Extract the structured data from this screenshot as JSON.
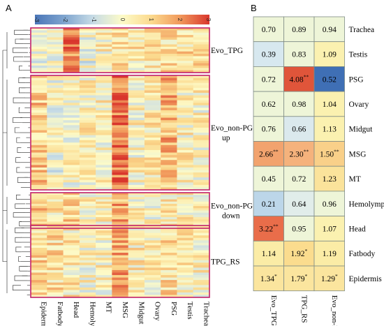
{
  "panel_a": {
    "letter": "A",
    "colorbar_ticks": [
      "-3",
      "-2",
      "-1",
      "0",
      "1",
      "2",
      "3"
    ],
    "colors": {
      "low": "#4a76b8",
      "mid": "#fdfbc8",
      "high": "#d9362d",
      "box": "#c1206a"
    }
  },
  "panel_b": {
    "letter": "B"
  },
  "chart_data": [
    {
      "type": "heatmap",
      "title": "",
      "color_scale": {
        "min": -3,
        "max": 3,
        "ticks": [
          -3,
          -2,
          -1,
          0,
          1,
          2,
          3
        ],
        "palette": "blue-white-yellow-red"
      },
      "columns": [
        "Epidermis",
        "Fatbody",
        "Head",
        "Hemolymph",
        "MT",
        "MSG",
        "Midgut",
        "Ovary",
        "PSG",
        "Testis",
        "Trachea"
      ],
      "dendrogram": true,
      "groups": [
        {
          "name": "Evo_TPG",
          "lines": [
            "Evo_TPG"
          ],
          "rows": 19
        },
        {
          "name": "Evo_non-PG up",
          "lines": [
            "Evo_non-PG",
            "up"
          ],
          "rows": 46
        },
        {
          "name": "Evo_non-PG down",
          "lines": [
            "Evo_non-PG",
            "down"
          ],
          "rows": 16
        },
        {
          "name": "TPG_RS",
          "lines": [
            "TPG_RS"
          ],
          "rows": 29
        }
      ],
      "group_profiles": [
        [
          -0.3,
          -0.1,
          2.3,
          -0.2,
          0.3,
          0.7,
          0.4,
          0.6,
          0.8,
          0.7,
          0.6
        ],
        [
          1.1,
          -0.2,
          0.1,
          0.3,
          0.2,
          2.4,
          0.2,
          0.4,
          1.4,
          0.3,
          0.2
        ],
        [
          1.5,
          0.6,
          0.9,
          0.3,
          0.2,
          1.5,
          0.2,
          0.1,
          0.5,
          0.4,
          0.2
        ],
        [
          0.9,
          0.8,
          0.5,
          0.1,
          0.2,
          1.6,
          0.4,
          0.3,
          0.8,
          0.4,
          0.3
        ]
      ]
    },
    {
      "type": "table",
      "title": "",
      "columns": [
        "Evo_TPG",
        "TPG_RS",
        "Evo_non-PG"
      ],
      "rows": [
        {
          "tissue": "Trachea",
          "values": [
            0.7,
            0.89,
            0.94
          ],
          "labels": [
            "0.70",
            "0.89",
            "0.94"
          ],
          "sig": [
            "",
            "",
            ""
          ]
        },
        {
          "tissue": "Testis",
          "values": [
            0.39,
            0.83,
            1.09
          ],
          "labels": [
            "0.39",
            "0.83",
            "1.09"
          ],
          "sig": [
            "",
            "",
            ""
          ]
        },
        {
          "tissue": "PSG",
          "values": [
            0.72,
            4.08,
            0.52
          ],
          "labels": [
            "0.72",
            "4.08",
            "0.52"
          ],
          "sig": [
            "",
            "**",
            ""
          ]
        },
        {
          "tissue": "Ovary",
          "values": [
            0.62,
            0.98,
            1.04
          ],
          "labels": [
            "0.62",
            "0.98",
            "1.04"
          ],
          "sig": [
            "",
            "",
            ""
          ]
        },
        {
          "tissue": "Midgut",
          "values": [
            0.76,
            0.66,
            1.13
          ],
          "labels": [
            "0.76",
            "0.66",
            "1.13"
          ],
          "sig": [
            "",
            "",
            ""
          ]
        },
        {
          "tissue": "MSG",
          "values": [
            2.66,
            2.3,
            1.5
          ],
          "labels": [
            "2.66",
            "2.30",
            "1.50"
          ],
          "sig": [
            "**",
            "**",
            "**"
          ]
        },
        {
          "tissue": "MT",
          "values": [
            0.45,
            0.72,
            1.23
          ],
          "labels": [
            "0.45",
            "0.72",
            "1.23"
          ],
          "sig": [
            "",
            "",
            ""
          ]
        },
        {
          "tissue": "Hemolymph",
          "values": [
            0.21,
            0.64,
            0.96
          ],
          "labels": [
            "0.21",
            "0.64",
            "0.96"
          ],
          "sig": [
            "",
            "",
            ""
          ]
        },
        {
          "tissue": "Head",
          "values": [
            3.22,
            0.95,
            1.07
          ],
          "labels": [
            "3.22",
            "0.95",
            "1.07"
          ],
          "sig": [
            "**",
            "",
            ""
          ]
        },
        {
          "tissue": "Fatbody",
          "values": [
            1.14,
            1.92,
            1.19
          ],
          "labels": [
            "1.14",
            "1.92",
            "1.19"
          ],
          "sig": [
            "",
            "*",
            ""
          ]
        },
        {
          "tissue": "Epidermis",
          "values": [
            1.34,
            1.79,
            1.29
          ],
          "labels": [
            "1.34",
            "1.79",
            "1.29"
          ],
          "sig": [
            "*",
            "*",
            "*"
          ]
        }
      ],
      "cell_colors": [
        [
          "#eef5d8",
          "#eef5d8",
          "#eef5d8"
        ],
        [
          "#d7e8ef",
          "#eef5d8",
          "#fbf1b0"
        ],
        [
          "#eef5d8",
          "#e0553a",
          "#3f6fb5"
        ],
        [
          "#eef5d8",
          "#eef5d8",
          "#fbf1b0"
        ],
        [
          "#eef5d8",
          "#dbe9ed",
          "#fbf1b0"
        ],
        [
          "#f2a36e",
          "#f5b27c",
          "#f9d089"
        ],
        [
          "#eef5d8",
          "#eef5d8",
          "#fbe39b"
        ],
        [
          "#bcd6e9",
          "#e1edea",
          "#eef5d8"
        ],
        [
          "#e96d4a",
          "#eef5d8",
          "#fbf1b0"
        ],
        [
          "#fbeca6",
          "#fbdc8e",
          "#fbeca6"
        ],
        [
          "#fbe59e",
          "#fbe59e",
          "#fbe59e"
        ]
      ]
    }
  ]
}
